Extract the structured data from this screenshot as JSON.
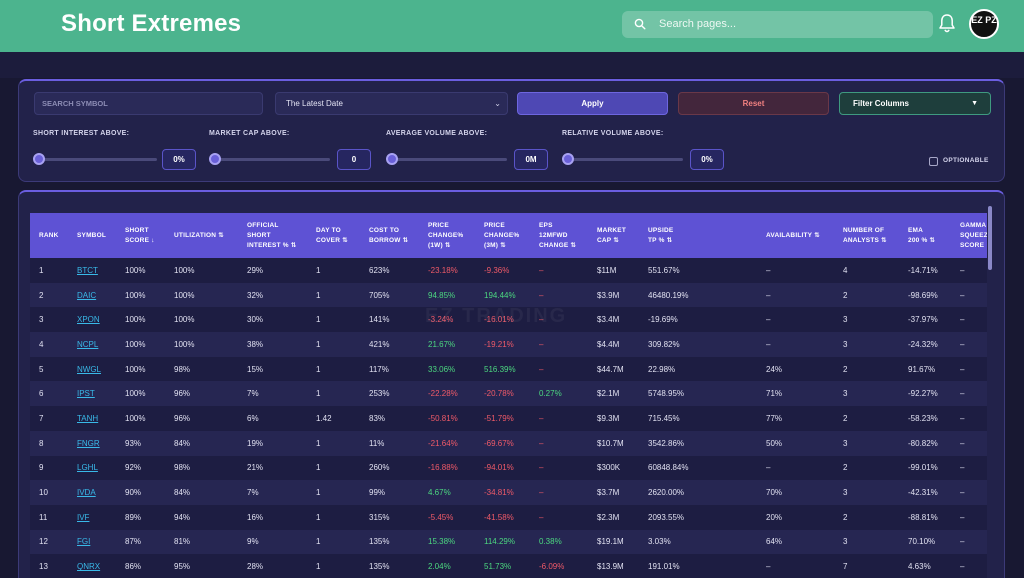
{
  "header": {
    "title": "Short Extremes",
    "search_placeholder": "Search pages...",
    "avatar_text": "EZ PZ",
    "bg_color": "#4cb48e"
  },
  "filters": {
    "symbol_placeholder": "SEARCH SYMBOL",
    "date_value": "The Latest Date",
    "apply_label": "Apply",
    "reset_label": "Reset",
    "filter_columns_label": "Filter Columns",
    "sliders": [
      {
        "label": "SHORT INTEREST ABOVE:",
        "value": "0%"
      },
      {
        "label": "MARKET CAP ABOVE:",
        "value": "0"
      },
      {
        "label": "AVERAGE VOLUME ABOVE:",
        "value": "0M"
      },
      {
        "label": "RELATIVE VOLUME ABOVE:",
        "value": "0%"
      }
    ],
    "optionable_label": "OPTIONABLE"
  },
  "table": {
    "watermark": "EZ TRADING",
    "columns": [
      "RANK",
      "SYMBOL",
      "SHORT\nSCORE ↓",
      "UTILIZATION ⇅",
      "OFFICIAL\nSHORT\nINTEREST % ⇅",
      "DAY TO\nCOVER ⇅",
      "COST TO\nBORROW ⇅",
      "PRICE\nCHANGE%\n(1W) ⇅",
      "PRICE\nCHANGE%\n(3M) ⇅",
      "EPS\n12MFWD\nCHANGE ⇅",
      "MARKET\nCAP ⇅",
      "UPSIDE\nTP % ⇅",
      "AVAILABILITY ⇅",
      "NUMBER OF\nANALYSTS ⇅",
      "EMA\n200 % ⇅",
      "GAMMA\nSQUEEZE\nSCORE"
    ],
    "rows": [
      [
        "1",
        "BTCT",
        "100%",
        "100%",
        "29%",
        "1",
        "623%",
        "-23.18%",
        "-9.36%",
        "–",
        "$11M",
        "551.67%",
        "–",
        "4",
        "-14.71%",
        "–"
      ],
      [
        "2",
        "DAIC",
        "100%",
        "100%",
        "32%",
        "1",
        "705%",
        "94.85%",
        "194.44%",
        "–",
        "$3.9M",
        "46480.19%",
        "–",
        "2",
        "-98.69%",
        "–"
      ],
      [
        "3",
        "XPON",
        "100%",
        "100%",
        "30%",
        "1",
        "141%",
        "-3.24%",
        "-16.01%",
        "–",
        "$3.4M",
        "-19.69%",
        "–",
        "3",
        "-37.97%",
        "–"
      ],
      [
        "4",
        "NCPL",
        "100%",
        "100%",
        "38%",
        "1",
        "421%",
        "21.67%",
        "-19.21%",
        "–",
        "$4.4M",
        "309.82%",
        "–",
        "3",
        "-24.32%",
        "–"
      ],
      [
        "5",
        "NWGL",
        "100%",
        "98%",
        "15%",
        "1",
        "117%",
        "33.06%",
        "516.39%",
        "–",
        "$44.7M",
        "22.98%",
        "24%",
        "2",
        "91.67%",
        "–"
      ],
      [
        "6",
        "IPST",
        "100%",
        "96%",
        "7%",
        "1",
        "253%",
        "-22.28%",
        "-20.78%",
        "0.27%",
        "$2.1M",
        "5748.95%",
        "71%",
        "3",
        "-92.27%",
        "–"
      ],
      [
        "7",
        "TANH",
        "100%",
        "96%",
        "6%",
        "1.42",
        "83%",
        "-50.81%",
        "-51.79%",
        "–",
        "$9.3M",
        "715.45%",
        "77%",
        "2",
        "-58.23%",
        "–"
      ],
      [
        "8",
        "FNGR",
        "93%",
        "84%",
        "19%",
        "1",
        "11%",
        "-21.64%",
        "-69.67%",
        "–",
        "$10.7M",
        "3542.86%",
        "50%",
        "3",
        "-80.82%",
        "–"
      ],
      [
        "9",
        "LGHL",
        "92%",
        "98%",
        "21%",
        "1",
        "260%",
        "-16.88%",
        "-94.01%",
        "–",
        "$300K",
        "60848.84%",
        "–",
        "2",
        "-99.01%",
        "–"
      ],
      [
        "10",
        "IVDA",
        "90%",
        "84%",
        "7%",
        "1",
        "99%",
        "4.67%",
        "-34.81%",
        "–",
        "$3.7M",
        "2620.00%",
        "70%",
        "3",
        "-42.31%",
        "–"
      ],
      [
        "11",
        "IVF",
        "89%",
        "94%",
        "16%",
        "1",
        "315%",
        "-5.45%",
        "-41.58%",
        "–",
        "$2.3M",
        "2093.55%",
        "20%",
        "2",
        "-88.81%",
        "–"
      ],
      [
        "12",
        "FGI",
        "87%",
        "81%",
        "9%",
        "1",
        "135%",
        "15.38%",
        "114.29%",
        "0.38%",
        "$19.1M",
        "3.03%",
        "64%",
        "3",
        "70.10%",
        "–"
      ],
      [
        "13",
        "QNRX",
        "86%",
        "95%",
        "28%",
        "1",
        "135%",
        "2.04%",
        "51.73%",
        "-6.09%",
        "$13.9M",
        "191.01%",
        "–",
        "7",
        "4.63%",
        "–"
      ]
    ],
    "colors": {
      "positive": "#4cd880",
      "negative": "#f05a68",
      "symbol": "#39b9e8",
      "header": "#5e52d4"
    }
  }
}
